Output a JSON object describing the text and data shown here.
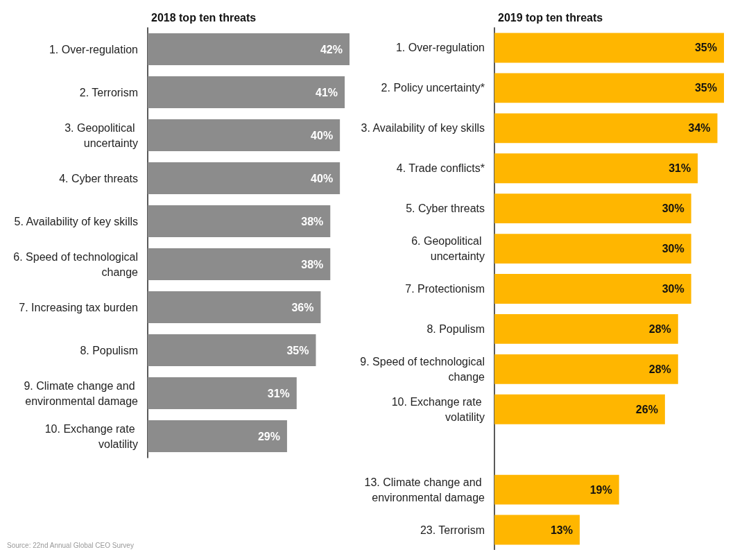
{
  "chart_data": [
    {
      "type": "bar",
      "orientation": "horizontal",
      "title": "2018 top ten threats",
      "color": "#8c8c8c",
      "categories": [
        "1. Over-regulation",
        "2. Terrorism",
        "3. Geopolitical uncertainty",
        "4. Cyber threats",
        "5. Availability of key skills",
        "6. Speed of technological change",
        "7. Increasing tax burden",
        "8. Populism",
        "9. Climate change and environmental damage",
        "10. Exchange rate volatility"
      ],
      "values": [
        42,
        41,
        40,
        40,
        38,
        38,
        36,
        35,
        31,
        29
      ],
      "value_labels": [
        "42%",
        "41%",
        "40%",
        "40%",
        "38%",
        "38%",
        "36%",
        "35%",
        "31%",
        "29%"
      ],
      "annotations": [
        "Source: 22nd Annual Global CEO Survey"
      ]
    },
    {
      "type": "bar",
      "orientation": "horizontal",
      "title": "2019 top ten threats",
      "color": "#ffb600",
      "categories": [
        "1. Over-regulation",
        "2. Policy uncertainty*",
        "3. Availability of key skills",
        "4. Trade conflicts*",
        "5. Cyber threats",
        "6. Geopolitical uncertainty",
        "7. Protectionism",
        "8. Populism",
        "9. Speed of technological change",
        "10. Exchange rate volatility",
        null,
        "13. Climate change and environmental damage",
        "23. Terrorism"
      ],
      "values": [
        35,
        35,
        34,
        31,
        30,
        30,
        30,
        28,
        28,
        26,
        null,
        19,
        13
      ],
      "value_labels": [
        "35%",
        "35%",
        "34%",
        "31%",
        "30%",
        "30%",
        "30%",
        "28%",
        "28%",
        "26%",
        null,
        "19%",
        "13%"
      ]
    }
  ]
}
